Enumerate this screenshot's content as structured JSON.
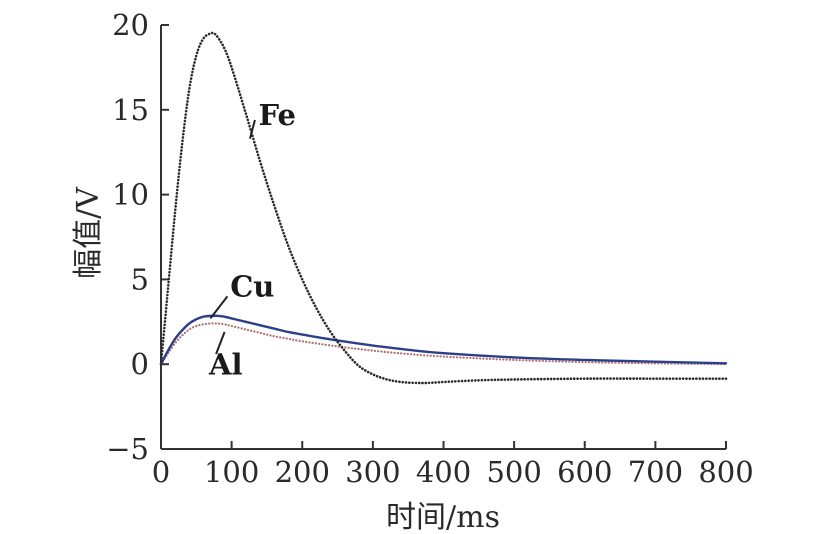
{
  "chart_data": {
    "type": "line",
    "xlabel": "时间/ms",
    "ylabel": "幅值/V",
    "xlim": [
      0,
      800
    ],
    "ylim": [
      -5,
      20
    ],
    "x_ticks": [
      0,
      100,
      200,
      300,
      400,
      500,
      600,
      700,
      800
    ],
    "y_ticks": [
      -5,
      0,
      5,
      10,
      15,
      20
    ],
    "x_tick_labels": [
      "0",
      "100",
      "200",
      "300",
      "400",
      "500",
      "600",
      "700",
      "800"
    ],
    "y_tick_labels": [
      "−5",
      "0",
      "5",
      "10",
      "15",
      "20"
    ],
    "grid": false,
    "series": [
      {
        "name": "Fe",
        "color": "#2b2b2b",
        "style": "dotted",
        "x": [
          0,
          10,
          20,
          30,
          40,
          50,
          60,
          70,
          75,
          80,
          90,
          100,
          120,
          140,
          160,
          180,
          200,
          220,
          240,
          260,
          280,
          300,
          320,
          340,
          360,
          380,
          400,
          450,
          500,
          600,
          700,
          800
        ],
        "y": [
          0,
          4.5,
          9,
          13,
          16.2,
          18.2,
          19.2,
          19.5,
          19.5,
          19.3,
          18.6,
          17.5,
          14.8,
          12.0,
          9.4,
          7.0,
          5.0,
          3.3,
          1.9,
          0.8,
          -0.1,
          -0.6,
          -0.9,
          -1.05,
          -1.1,
          -1.1,
          -1.05,
          -0.95,
          -0.9,
          -0.85,
          -0.85,
          -0.85
        ]
      },
      {
        "name": "Cu",
        "color": "#2c3f8a",
        "style": "solid",
        "x": [
          0,
          10,
          20,
          30,
          40,
          50,
          60,
          70,
          80,
          90,
          100,
          120,
          140,
          160,
          180,
          200,
          250,
          300,
          350,
          400,
          500,
          600,
          700,
          800
        ],
        "y": [
          0,
          0.8,
          1.5,
          2.0,
          2.4,
          2.65,
          2.8,
          2.85,
          2.85,
          2.8,
          2.7,
          2.5,
          2.3,
          2.1,
          1.9,
          1.75,
          1.4,
          1.1,
          0.85,
          0.65,
          0.4,
          0.25,
          0.15,
          0.05
        ]
      },
      {
        "name": "Al",
        "color": "#b07070",
        "style": "dotted",
        "x": [
          0,
          10,
          20,
          30,
          40,
          50,
          60,
          70,
          80,
          90,
          100,
          120,
          140,
          160,
          180,
          200,
          250,
          300,
          350,
          400,
          500,
          600,
          700,
          800
        ],
        "y": [
          0,
          0.65,
          1.25,
          1.7,
          2.05,
          2.25,
          2.35,
          2.4,
          2.4,
          2.35,
          2.25,
          2.05,
          1.85,
          1.65,
          1.5,
          1.35,
          1.05,
          0.8,
          0.6,
          0.45,
          0.25,
          0.12,
          0.05,
          0.0
        ]
      }
    ],
    "annotations": [
      {
        "text": "Fe",
        "series": "Fe"
      },
      {
        "text": "Cu",
        "series": "Cu"
      },
      {
        "text": "Al",
        "series": "Al"
      }
    ]
  }
}
